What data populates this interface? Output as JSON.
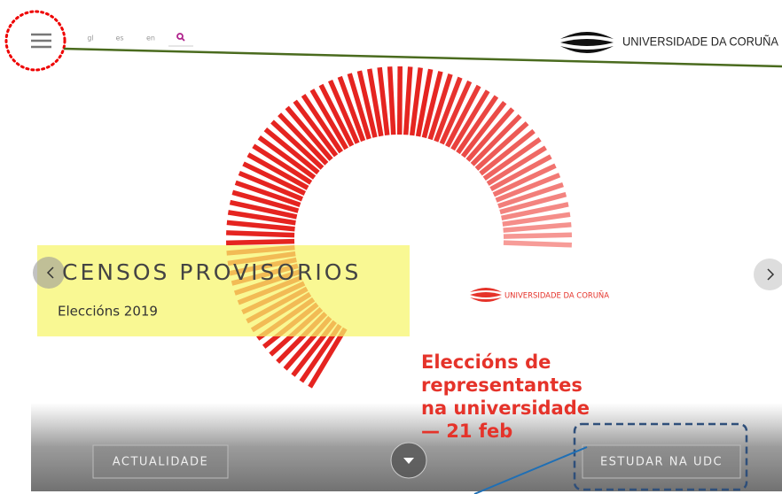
{
  "header": {
    "languages": [
      "gl",
      "es",
      "en"
    ],
    "logo": "UNIVERSIDADE DA CORUÑA"
  },
  "slide": {
    "title": "CENSOS PROVISORIOS",
    "subtitle": "Eleccións 2019",
    "poster": {
      "logo": "UNIVERSIDADE DA CORUÑA",
      "lines": [
        "Eleccións de",
        "representantes",
        "na universidade",
        "— 21 feb"
      ]
    }
  },
  "buttons": [
    "ACTUALIDADE",
    "ESTUDAR NA UDC"
  ]
}
